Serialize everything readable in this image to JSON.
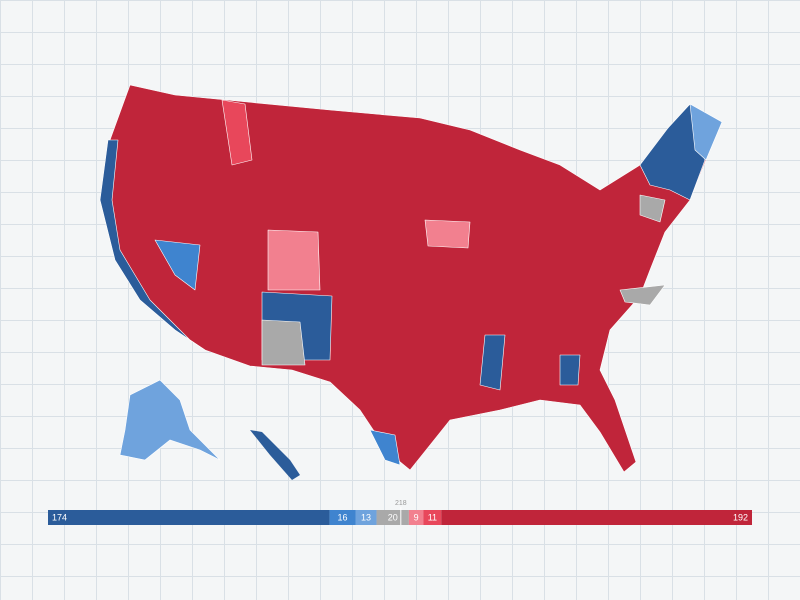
{
  "seat_bar": {
    "majority": 218,
    "segments": [
      {
        "value": 174,
        "color": "#2b5c9a"
      },
      {
        "value": 16,
        "color": "#3f84cf"
      },
      {
        "value": 13,
        "color": "#6fa3dd"
      },
      {
        "value": 20,
        "color": "#a9a9a9"
      },
      {
        "value": 9,
        "color": "#f2808f"
      },
      {
        "value": 11,
        "color": "#e8475b"
      },
      {
        "value": 192,
        "color": "#c0253a"
      }
    ]
  }
}
